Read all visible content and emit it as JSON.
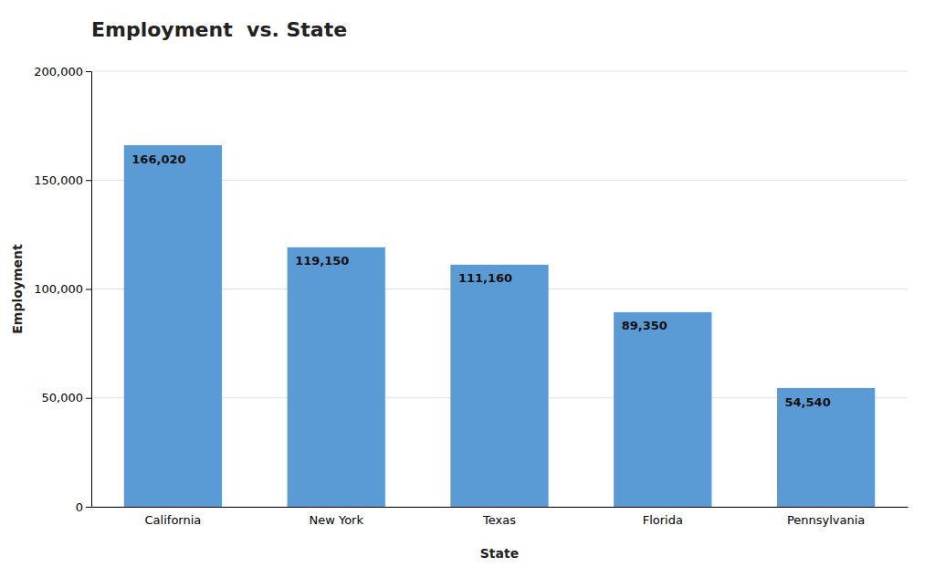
{
  "chart_data": {
    "type": "bar",
    "title": "Employment  vs. State",
    "xlabel": "State",
    "ylabel": "Employment",
    "categories": [
      "California",
      "New York",
      "Texas",
      "Florida",
      "Pennsylvania"
    ],
    "values": [
      166020,
      119150,
      111160,
      89350,
      54540
    ],
    "value_labels": [
      "166,020",
      "119,150",
      "111,160",
      "89,350",
      "54,540"
    ],
    "data_labels": true,
    "color": "#5b9bd5",
    "ylim": [
      0,
      200000
    ],
    "yticks": [
      0,
      {
        "value": 50000,
        "label": "50,000"
      },
      {
        "value": 100000,
        "label": "100,000"
      },
      {
        "value": 150000,
        "label": "150,000"
      },
      {
        "value": 200000,
        "label": "200,000"
      }
    ],
    "grid": true
  }
}
